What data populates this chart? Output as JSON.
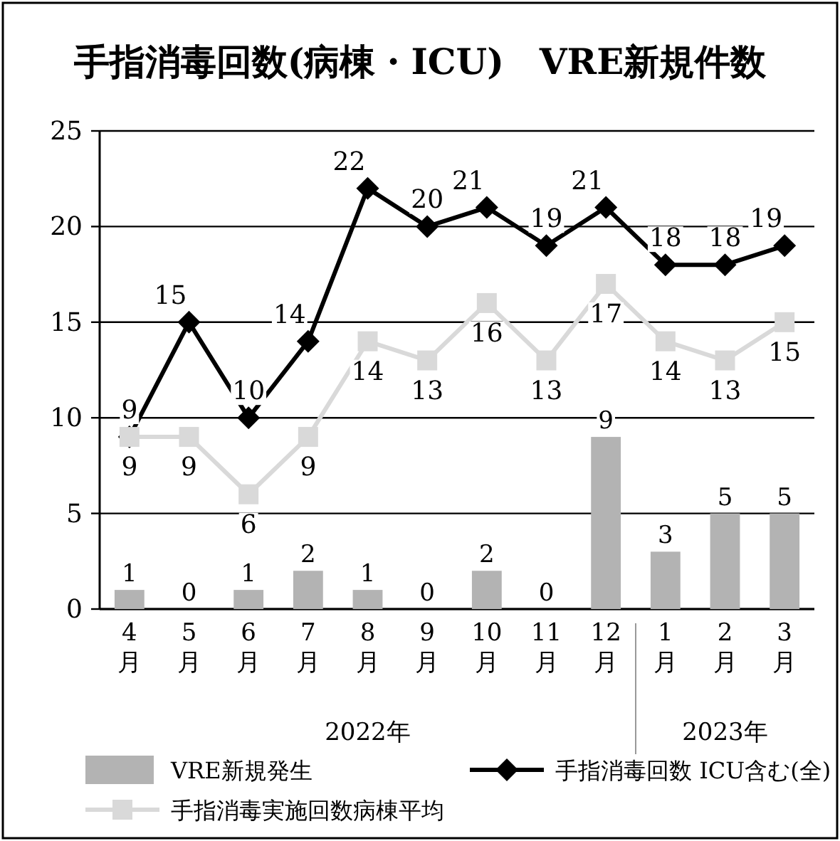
{
  "chart_data": {
    "type": "bar",
    "title": "手指消毒回数(病棟・ICU)　VRE新規件数",
    "categories": [
      "4月",
      "5月",
      "6月",
      "7月",
      "8月",
      "9月",
      "10月",
      "11月",
      "12月",
      "1月",
      "2月",
      "3月"
    ],
    "series": [
      {
        "name": "VRE新規発生",
        "color": "#b3b3b3",
        "values": [
          1,
          0,
          1,
          2,
          1,
          0,
          2,
          0,
          9,
          3,
          5,
          5
        ]
      },
      {
        "name": "手指消毒回数 ICU含む(全)",
        "type": "line",
        "color": "#000000",
        "marker": "diamond",
        "values": [
          9,
          15,
          10,
          14,
          22,
          20,
          21,
          19,
          21,
          18,
          18,
          19
        ]
      },
      {
        "name": "手指消毒実施回数病棟平均",
        "type": "line",
        "color": "#d9d9d9",
        "marker": "square",
        "values": [
          9,
          9,
          6,
          9,
          14,
          13,
          16,
          13,
          17,
          14,
          13,
          15
        ]
      }
    ],
    "annotations": [
      "2022年",
      "2023年"
    ],
    "ylim": [
      0,
      25
    ],
    "yticks": [
      0,
      5,
      10,
      15,
      20,
      25
    ],
    "grid": "y",
    "data_labels": true,
    "legend": "bottom"
  }
}
